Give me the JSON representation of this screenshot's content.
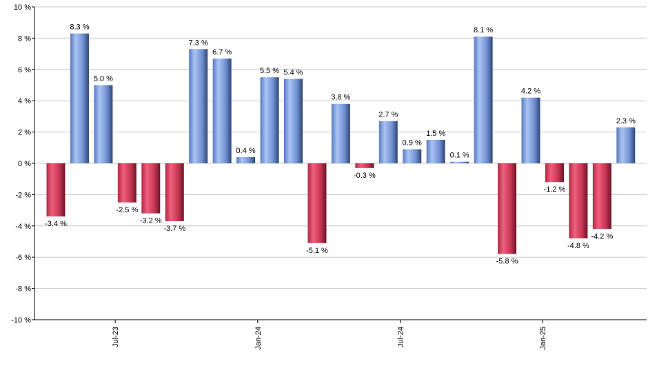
{
  "chart_data": {
    "type": "bar",
    "title": "",
    "xlabel": "",
    "ylabel": "",
    "ylim": [
      -10,
      10
    ],
    "yticks": [
      10,
      8,
      6,
      4,
      2,
      0,
      -2,
      -4,
      -6,
      -8,
      -10
    ],
    "ytick_suffix": " %",
    "values": [
      -3.4,
      8.3,
      5.0,
      -2.5,
      -3.2,
      -3.7,
      7.3,
      6.7,
      0.4,
      5.5,
      5.4,
      -5.1,
      3.8,
      -0.3,
      2.7,
      0.9,
      1.5,
      0.1,
      8.1,
      -5.8,
      4.2,
      -1.2,
      -4.8,
      -4.2,
      2.3
    ],
    "value_labels": [
      "-3.4 %",
      "8.3 %",
      "5.0 %",
      "-2.5 %",
      "-3.2 %",
      "-3.7 %",
      "7.3 %",
      "6.7 %",
      "0.4 %",
      "5.5 %",
      "5.4 %",
      "-5.1 %",
      "3.8 %",
      "-0.3 %",
      "2.7 %",
      "0.9 %",
      "1.5 %",
      "0.1 %",
      "8.1 %",
      "-5.8 %",
      "4.2 %",
      "-1.2 %",
      "-4.8 %",
      "-4.2 %",
      "2.3 %"
    ],
    "x_ticks": [
      {
        "label": "Jul-23",
        "index": 2.5
      },
      {
        "label": "Jan-24",
        "index": 8.5
      },
      {
        "label": "Jul-24",
        "index": 14.5
      },
      {
        "label": "Jan-25",
        "index": 20.5
      }
    ],
    "grid": true,
    "legend": "none",
    "colors": {
      "positive": "#7da1e6",
      "negative": "#d9425f"
    }
  }
}
